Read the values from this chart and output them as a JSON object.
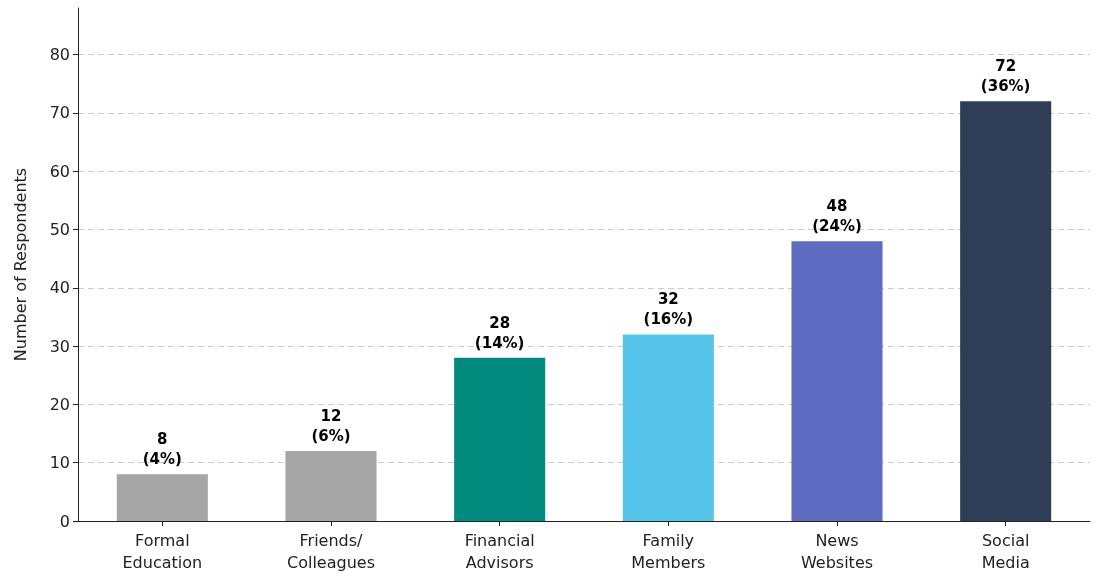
{
  "chart_data": {
    "type": "bar",
    "ylabel": "Number of Respondents",
    "categories": [
      "Formal\nEducation",
      "Friends/\nColleagues",
      "Financial\nAdvisors",
      "Family\nMembers",
      "News\nWebsites",
      "Social\nMedia"
    ],
    "values": [
      8,
      12,
      28,
      32,
      48,
      72
    ],
    "colors": [
      "#a6a6a6",
      "#a6a6a6",
      "#038a7f",
      "#56c5eb",
      "#5f6bc0",
      "#2e3e57"
    ],
    "value_labels": [
      "8\n(4%)",
      "12\n(6%)",
      "28\n(14%)",
      "32\n(16%)",
      "48\n(24%)",
      "72\n(36%)"
    ],
    "ylim": [
      0,
      88
    ],
    "yticks": [
      0,
      10,
      20,
      30,
      40,
      50,
      60,
      70,
      80
    ],
    "grid": "y"
  }
}
